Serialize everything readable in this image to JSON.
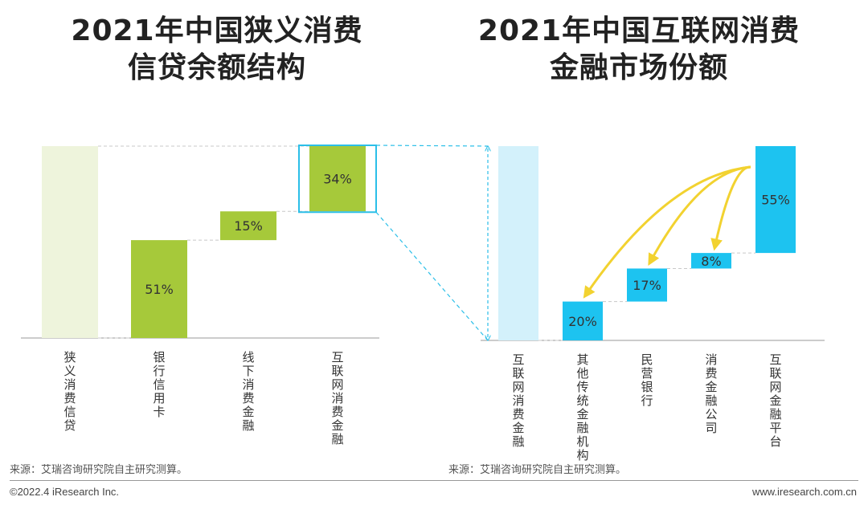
{
  "titles": {
    "left_line1": "2021年中国狭义消费",
    "left_line2": "信贷余额结构",
    "right_line1": "2021年中国互联网消费",
    "right_line2": "金融市场份额"
  },
  "source": {
    "left": "来源：艾瑞咨询研究院自主研究测算。",
    "right": "来源：艾瑞咨询研究院自主研究测算。"
  },
  "footer": {
    "copyright": "©2022.4 iResearch Inc.",
    "website": "www.iresearch.com.cn"
  },
  "colors": {
    "green": "#a6c93a",
    "green_light": "#eef4dc",
    "blue": "#1dc3f0",
    "blue_light": "#d3f1fb",
    "highlight_border": "#2bbfe8",
    "arrow": "#f2d230"
  },
  "chart_data": [
    {
      "type": "bar",
      "subtype": "waterfall",
      "title": "2021年中国狭义消费信贷余额结构",
      "categories": [
        "狭义消费信贷",
        "银行信用卡",
        "线下消费金融",
        "互联网消费金融"
      ],
      "values": [
        100,
        51,
        15,
        34
      ],
      "labels": [
        "",
        "51%",
        "15%",
        "34%"
      ],
      "total_index": 0,
      "highlight_index": 3
    },
    {
      "type": "bar",
      "subtype": "waterfall",
      "title": "2021年中国互联网消费金融市场份额",
      "categories": [
        "互联网消费金融",
        "其他传统金融机构",
        "民营银行",
        "消费金融公司",
        "互联网金融平台"
      ],
      "values": [
        100,
        20,
        17,
        8,
        55
      ],
      "labels": [
        "",
        "20%",
        "17%",
        "8%",
        "55%"
      ],
      "total_index": 0
    }
  ]
}
